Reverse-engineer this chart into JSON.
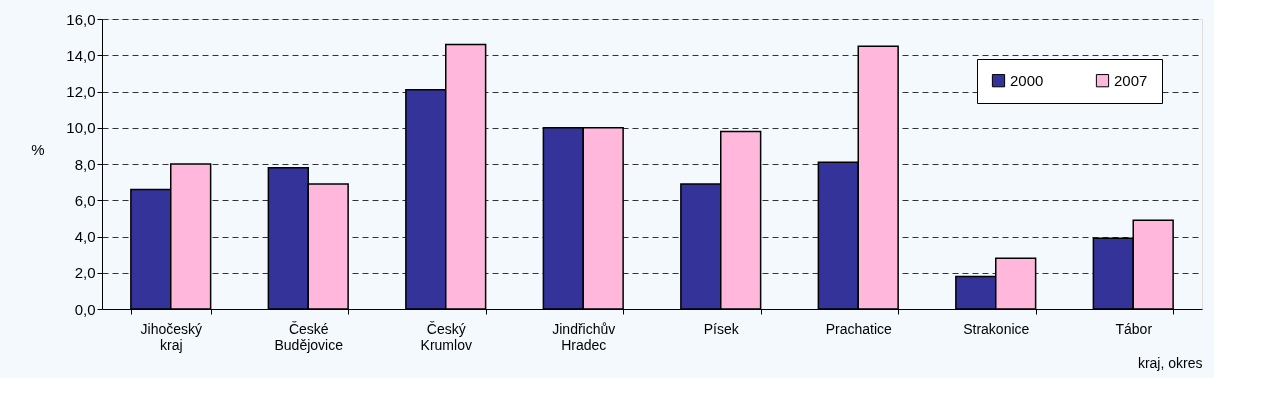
{
  "chart_data": {
    "type": "bar",
    "xlabel": "kraj, okres",
    "ylabel": "%",
    "categories": [
      "Jihočeský kraj",
      "České Budějovice",
      "Český Krumlov",
      "Jindřichův Hradec",
      "Písek",
      "Prachatice",
      "Strakonice",
      "Tábor"
    ],
    "series": [
      {
        "name": "2000",
        "color": "#333399",
        "values": [
          6.6,
          7.8,
          12.1,
          10.0,
          6.9,
          8.1,
          1.8,
          3.9
        ]
      },
      {
        "name": "2007",
        "color": "#ffb8dc",
        "values": [
          8.0,
          6.9,
          14.6,
          10.0,
          9.8,
          14.5,
          2.8,
          4.9
        ]
      }
    ],
    "ylim": [
      0,
      16
    ],
    "yticks": [
      {
        "value": 0,
        "label": "0,0"
      },
      {
        "value": 2,
        "label": "2,0"
      },
      {
        "value": 4,
        "label": "4,0"
      },
      {
        "value": 6,
        "label": "6,0"
      },
      {
        "value": 8,
        "label": "8,0"
      },
      {
        "value": 10,
        "label": "10,0"
      },
      {
        "value": 12,
        "label": "12,0"
      },
      {
        "value": 14,
        "label": "14,0"
      },
      {
        "value": 16,
        "label": "16,0"
      }
    ],
    "grid": "y",
    "legend": "top right",
    "line_style": "dashed"
  }
}
